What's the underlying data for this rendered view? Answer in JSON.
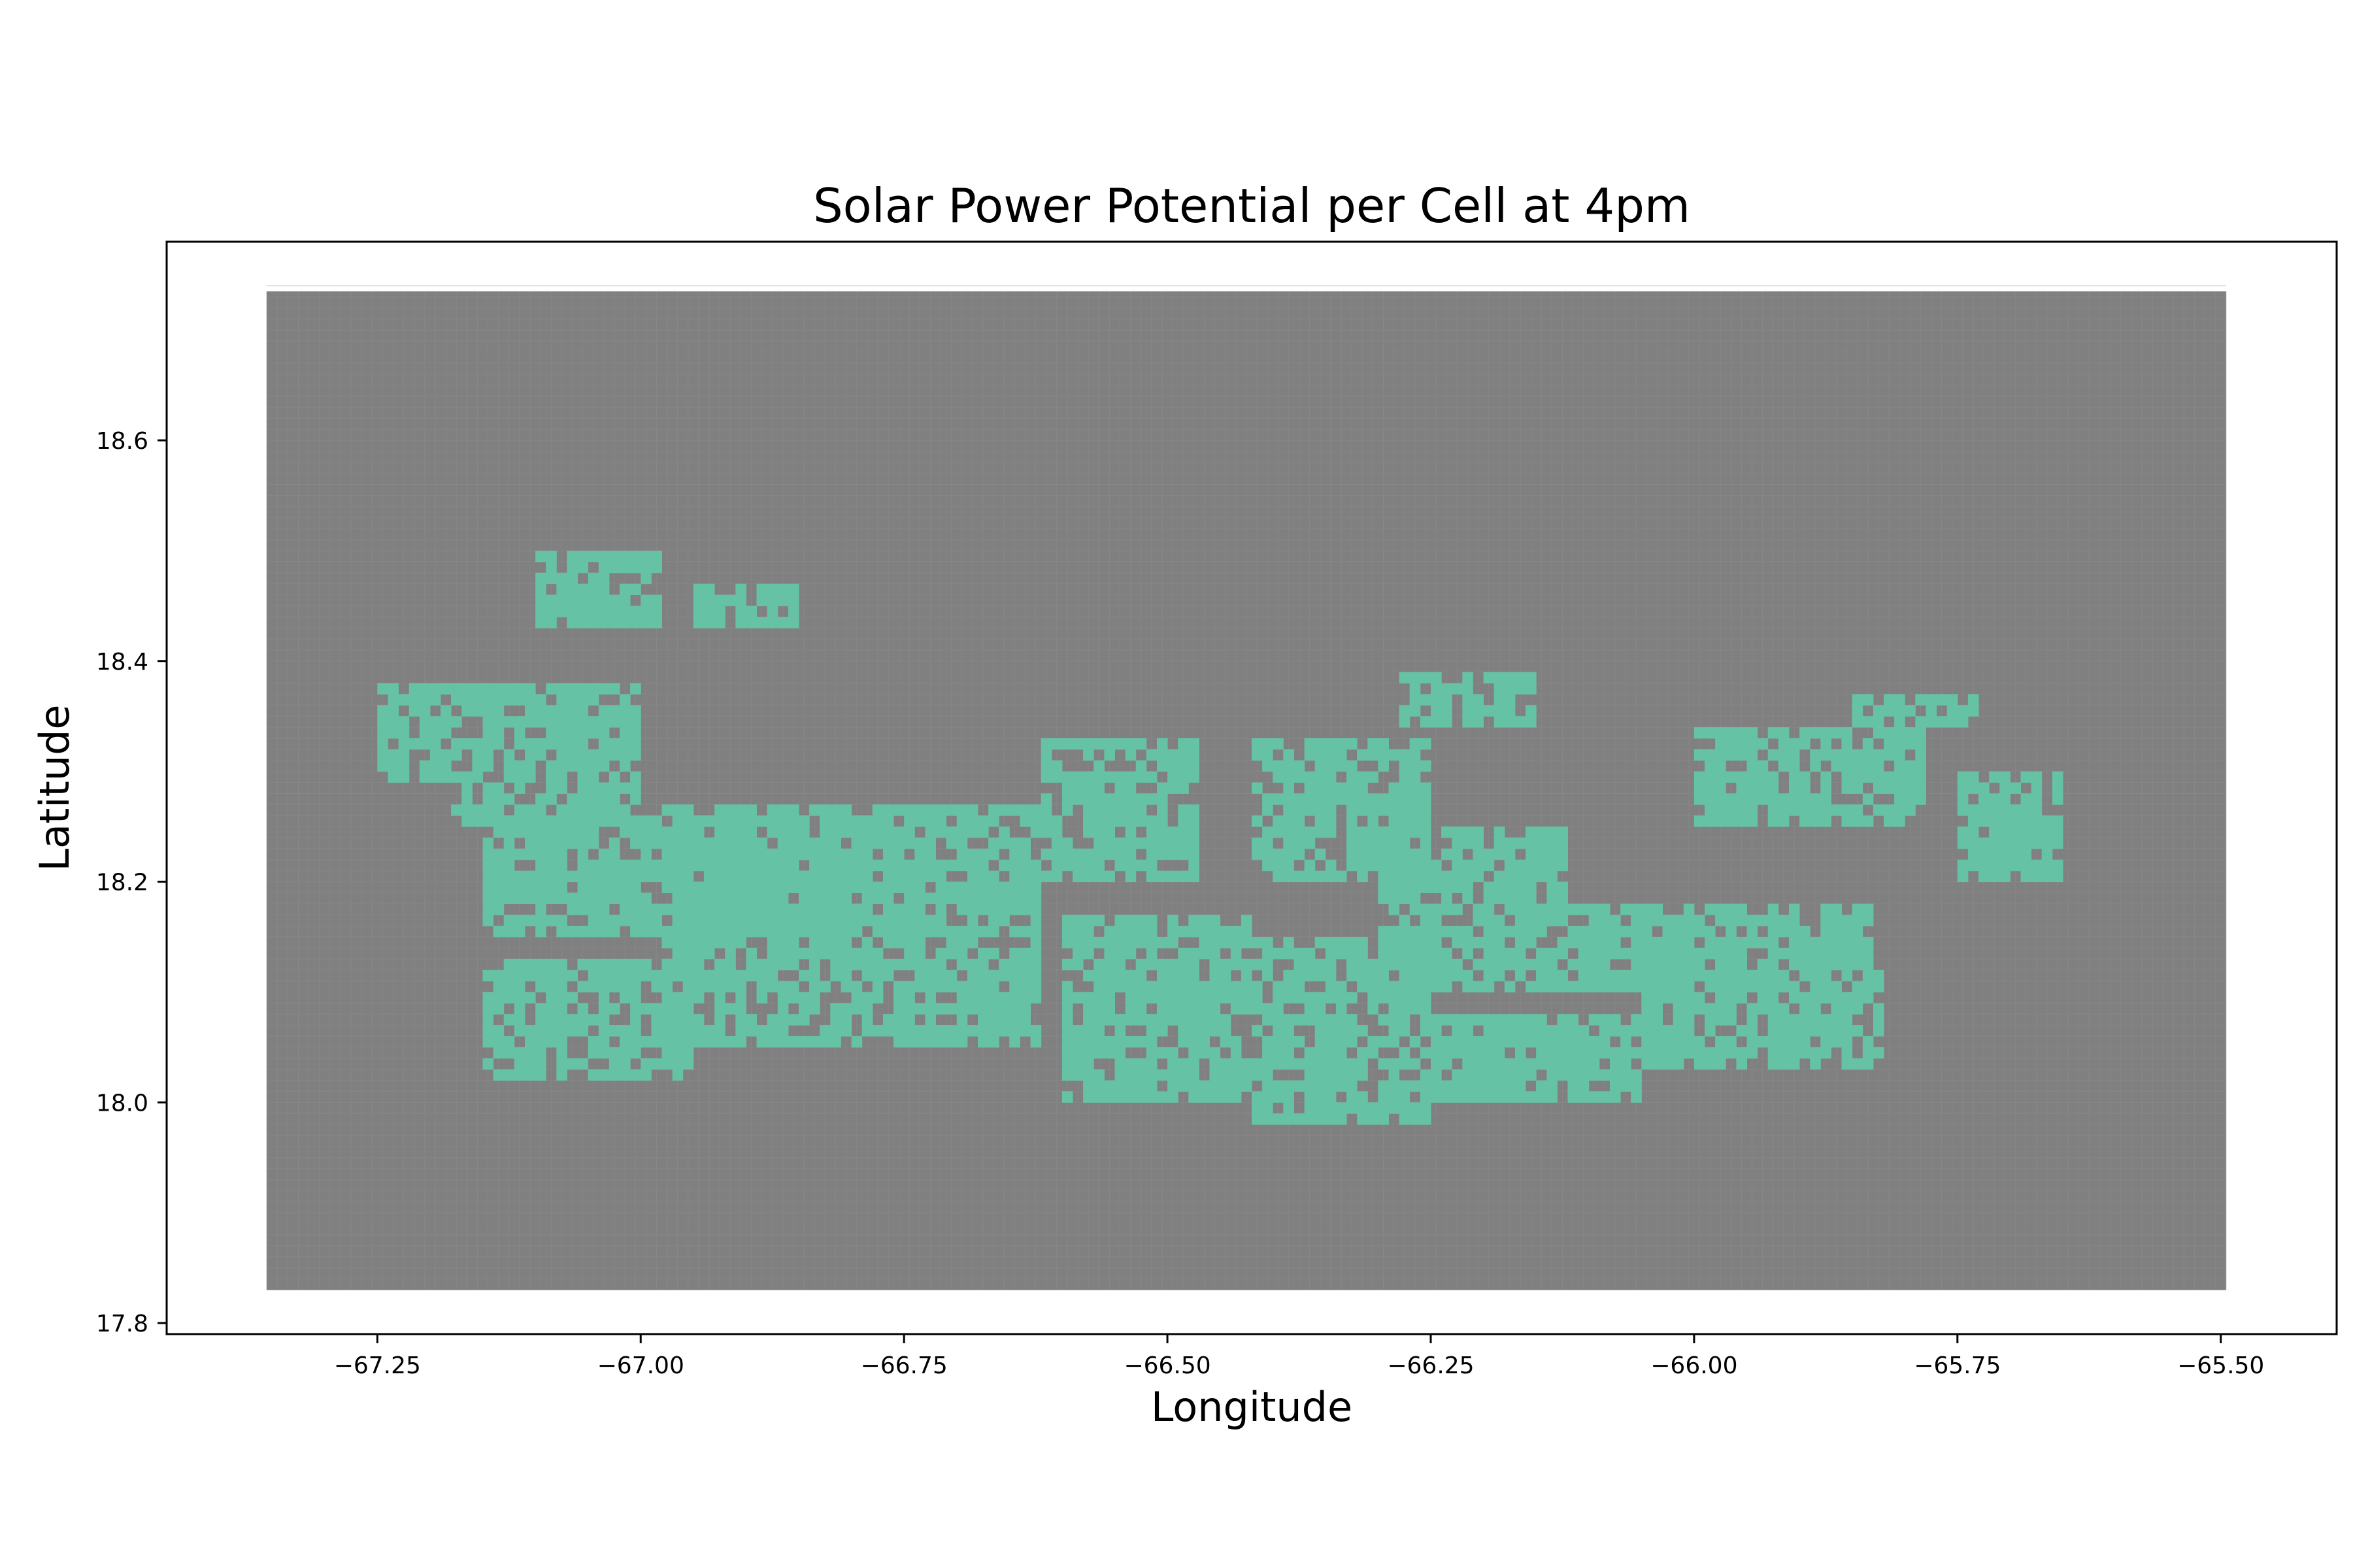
{
  "chart_data": {
    "type": "heatmap",
    "title": "Solar Power Potential per Cell at 4pm",
    "xlabel": "Longitude",
    "ylabel": "Latitude",
    "xlim": [
      -67.45,
      -65.39
    ],
    "ylim": [
      17.79,
      18.78
    ],
    "x_ticks": [
      -67.25,
      -67.0,
      -66.75,
      -66.5,
      -66.25,
      -66.0,
      -65.75,
      -65.5
    ],
    "x_tick_labels": [
      "−67.25",
      "−67.00",
      "−66.75",
      "−66.50",
      "−66.25",
      "−66.00",
      "−65.75",
      "−65.50"
    ],
    "y_ticks": [
      17.8,
      18.0,
      18.2,
      18.4,
      18.6
    ],
    "y_tick_labels": [
      "17.8",
      "18.0",
      "18.2",
      "18.4",
      "18.6"
    ],
    "grid_extent": {
      "lon_min": -67.355,
      "lon_max": -65.495,
      "lat_min": 17.83,
      "lat_max": 18.735
    },
    "cell_size_deg": 0.01,
    "grid": false,
    "legend": "none",
    "colors": {
      "background_cell": "#808080",
      "cell_edge": "#8c8c8c",
      "high_potential_cell": "#66c2a5",
      "axis": "#000000"
    },
    "high_potential_regions": [
      {
        "lon": [
          -67.25,
          -67.18
        ],
        "lat": [
          18.29,
          18.38
        ]
      },
      {
        "lon": [
          -67.18,
          -67.0
        ],
        "lat": [
          18.25,
          18.38
        ]
      },
      {
        "lon": [
          -67.15,
          -66.78
        ],
        "lat": [
          18.15,
          18.26
        ]
      },
      {
        "lon": [
          -67.15,
          -66.95
        ],
        "lat": [
          18.02,
          18.13
        ]
      },
      {
        "lon": [
          -66.98,
          -66.62
        ],
        "lat": [
          18.05,
          18.27
        ]
      },
      {
        "lon": [
          -66.62,
          -66.47
        ],
        "lat": [
          18.2,
          18.33
        ]
      },
      {
        "lon": [
          -66.6,
          -66.42
        ],
        "lat": [
          18.0,
          18.17
        ]
      },
      {
        "lon": [
          -66.42,
          -66.25
        ],
        "lat": [
          18.2,
          18.33
        ]
      },
      {
        "lon": [
          -66.42,
          -66.25
        ],
        "lat": [
          17.98,
          18.15
        ]
      },
      {
        "lon": [
          -66.3,
          -66.12
        ],
        "lat": [
          18.1,
          18.25
        ]
      },
      {
        "lon": [
          -66.25,
          -66.05
        ],
        "lat": [
          18.0,
          18.08
        ]
      },
      {
        "lon": [
          -66.28,
          -66.15
        ],
        "lat": [
          18.34,
          18.39
        ]
      },
      {
        "lon": [
          -66.12,
          -65.95
        ],
        "lat": [
          18.1,
          18.18
        ]
      },
      {
        "lon": [
          -66.05,
          -65.82
        ],
        "lat": [
          18.03,
          18.12
        ]
      },
      {
        "lon": [
          -65.95,
          -65.83
        ],
        "lat": [
          18.12,
          18.18
        ]
      },
      {
        "lon": [
          -66.0,
          -65.78
        ],
        "lat": [
          18.25,
          18.34
        ]
      },
      {
        "lon": [
          -65.75,
          -65.65
        ],
        "lat": [
          18.2,
          18.3
        ]
      },
      {
        "lon": [
          -65.85,
          -65.72
        ],
        "lat": [
          18.34,
          18.37
        ]
      },
      {
        "lon": [
          -67.1,
          -66.98
        ],
        "lat": [
          18.43,
          18.5
        ]
      },
      {
        "lon": [
          -66.95,
          -66.85
        ],
        "lat": [
          18.43,
          18.47
        ]
      }
    ]
  }
}
